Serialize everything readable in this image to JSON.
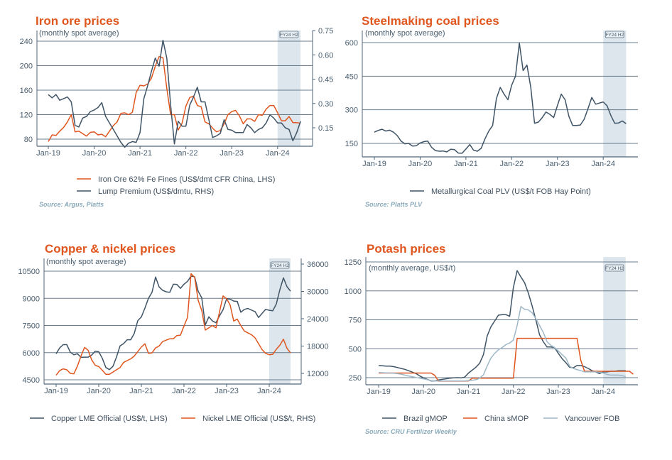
{
  "colors": {
    "title": "#e0561f",
    "dark_series": "#3f5466",
    "orange_series": "#e0561f",
    "light_series": "#9fb8c8",
    "grid": "#50667a",
    "highlight": "#dde6ec",
    "axis_text": "#4a5f70",
    "source_text": "#8aaabb"
  },
  "chart_data": [
    {
      "id": "iron-ore",
      "type": "line",
      "title": "Iron ore prices",
      "subtitle": "(monthly spot average)",
      "x_start": "Jan-19",
      "frequency": "monthly",
      "xticks": [
        "Jan-19",
        "Jan-20",
        "Jan-21",
        "Jan-22",
        "Jan-23",
        "Jan-24"
      ],
      "highlight": {
        "label": "FY24 H2",
        "from": "Jan-24",
        "to": "Jun-24"
      },
      "y_left": {
        "min": 80,
        "max": 240,
        "ticks": [
          "80",
          "120",
          "160",
          "200",
          "240"
        ]
      },
      "y_right": {
        "min": 0.15,
        "max": 0.75,
        "ticks": [
          "0.15",
          "0.30",
          "0.45",
          "0.60",
          "0.75"
        ]
      },
      "grid": true,
      "legend_position": "bottom",
      "series": [
        {
          "name": "Iron Ore 62% Fe Fines (US$/dmt CFR China, LHS)",
          "axis": "left",
          "color_key": "orange_series",
          "values": [
            76,
            87,
            86,
            93,
            99,
            108,
            120,
            92,
            93,
            89,
            85,
            91,
            92,
            87,
            88,
            84,
            93,
            102,
            108,
            122,
            123,
            120,
            124,
            156,
            168,
            167,
            170,
            180,
            199,
            215,
            213,
            163,
            120,
            120,
            95,
            106,
            134,
            148,
            150,
            135,
            133,
            108,
            105,
            98,
            92,
            94,
            105,
            120,
            125,
            127,
            118,
            105,
            113,
            113,
            109,
            120,
            119,
            129,
            135,
            135,
            123,
            110,
            110,
            117,
            107,
            107,
            106
          ]
        },
        {
          "name": "Lump Premium (US$/dmtu, RHS)",
          "axis": "right",
          "color_key": "dark_series",
          "values": [
            0.355,
            0.335,
            0.355,
            0.32,
            0.33,
            0.34,
            0.31,
            0.165,
            0.155,
            0.21,
            0.22,
            0.25,
            0.26,
            0.275,
            0.305,
            0.22,
            0.18,
            0.14,
            0.1,
            0.06,
            0.03,
            0.055,
            0.065,
            0.06,
            0.12,
            0.33,
            0.41,
            0.5,
            0.58,
            0.53,
            0.69,
            0.58,
            0.29,
            0.05,
            0.19,
            0.16,
            0.16,
            0.29,
            0.34,
            0.4,
            0.31,
            0.31,
            0.2,
            0.09,
            0.1,
            0.115,
            0.2,
            0.14,
            0.135,
            0.12,
            0.12,
            0.12,
            0.17,
            0.15,
            0.12,
            0.14,
            0.15,
            0.18,
            0.23,
            0.21,
            0.18,
            0.18,
            0.15,
            0.14,
            0.07,
            0.12,
            0.19
          ]
        }
      ],
      "source": "Source: Argus, Platts"
    },
    {
      "id": "steelmaking-coal",
      "type": "line",
      "title": "Steelmaking coal prices",
      "subtitle": "(monthly spot average)",
      "x_start": "Jan-19",
      "frequency": "monthly",
      "xticks": [
        "Jan-19",
        "Jan-20",
        "Jan-21",
        "Jan-22",
        "Jan-23",
        "Jan-24"
      ],
      "highlight": {
        "label": "FY24 H2",
        "from": "Jan-24",
        "to": "Jun-24"
      },
      "y_left": {
        "min": 150,
        "max": 600,
        "ticks": [
          "150",
          "300",
          "450",
          "600"
        ]
      },
      "grid": true,
      "legend_position": "bottom",
      "series": [
        {
          "name": "Metallurgical Coal PLV (US$/t FOB Hay Point)",
          "axis": "left",
          "color_key": "dark_series",
          "values": [
            200,
            208,
            213,
            205,
            209,
            200,
            185,
            160,
            148,
            150,
            138,
            140,
            152,
            158,
            160,
            133,
            118,
            115,
            116,
            112,
            124,
            122,
            107,
            106,
            125,
            145,
            120,
            115,
            128,
            170,
            205,
            230,
            350,
            400,
            370,
            345,
            410,
            450,
            598,
            475,
            500,
            400,
            240,
            245,
            265,
            290,
            280,
            265,
            320,
            370,
            345,
            270,
            230,
            230,
            232,
            258,
            305,
            355,
            325,
            330,
            335,
            318,
            275,
            240,
            241,
            250,
            238
          ]
        }
      ],
      "source": "Source: Platts PLV"
    },
    {
      "id": "copper-nickel",
      "type": "line",
      "title": "Copper & nickel prices",
      "subtitle": "(monthly spot average)",
      "x_start": "Jan-19",
      "frequency": "monthly",
      "xticks": [
        "Jan-19",
        "Jan-20",
        "Jan-21",
        "Jan-22",
        "Jan-23",
        "Jan-24"
      ],
      "highlight": {
        "label": "FY24 H2",
        "from": "Jan-24",
        "to": "Jun-24"
      },
      "y_left": {
        "min": 4500,
        "max": 10500,
        "ticks": [
          "4500",
          "6000",
          "7500",
          "9000",
          "10500"
        ]
      },
      "y_right": {
        "min": 12000,
        "max": 36000,
        "ticks": [
          "12000",
          "18000",
          "24000",
          "30000",
          "36000"
        ]
      },
      "grid": true,
      "legend_position": "bottom",
      "series": [
        {
          "name": "Copper LME Official (US$/t, LHS)",
          "axis": "left",
          "color_key": "dark_series",
          "values": [
            5940,
            6260,
            6440,
            6440,
            6020,
            5880,
            5940,
            5740,
            5750,
            5750,
            5860,
            6080,
            6050,
            5690,
            5180,
            5060,
            5240,
            5760,
            6370,
            6500,
            6710,
            6710,
            7060,
            7770,
            7970,
            8460,
            9000,
            9330,
            10180,
            9630,
            9440,
            9360,
            9330,
            9780,
            9770,
            9550,
            9780,
            9940,
            10230,
            10190,
            9390,
            9030,
            7530,
            7980,
            7750,
            7650,
            8030,
            8370,
            8980,
            8950,
            8850,
            8830,
            8230,
            8390,
            8440,
            8350,
            8270,
            7940,
            8170,
            8390,
            8340,
            8310,
            8690,
            9480,
            10130,
            9640,
            9400
          ]
        },
        {
          "name": "Nickel LME Official (US$/t, RHS)",
          "axis": "right",
          "color_key": "orange_series",
          "values": [
            11600,
            12600,
            13000,
            12800,
            12000,
            11900,
            13600,
            15800,
            17700,
            17100,
            15000,
            13800,
            13500,
            12700,
            11800,
            11800,
            12300,
            12800,
            13300,
            14400,
            14800,
            15200,
            15800,
            16800,
            17800,
            18500,
            16400,
            16500,
            17600,
            18000,
            19000,
            19300,
            19600,
            19600,
            20300,
            20400,
            22400,
            24300,
            33900,
            33100,
            28000,
            25800,
            21500,
            22000,
            22500,
            22000,
            25500,
            29000,
            28400,
            27000,
            23500,
            23900,
            22500,
            21300,
            20900,
            20500,
            19800,
            18500,
            17200,
            16400,
            16100,
            16200,
            17300,
            18200,
            19500,
            17500,
            16500
          ]
        }
      ],
      "source": ""
    },
    {
      "id": "potash",
      "type": "line",
      "title": "Potash prices",
      "subtitle": "(monthly average, US$/t)",
      "x_start": "Jan-19",
      "frequency": "monthly",
      "xticks": [
        "Jan-19",
        "Jan-20",
        "Jan-21",
        "Jan-22",
        "Jan-23",
        "Jan-24"
      ],
      "highlight": {
        "label": "FY24 H2",
        "from": "Jan-24",
        "to": "Jun-24"
      },
      "y_left": {
        "min": 250,
        "max": 1250,
        "ticks": [
          "250",
          "500",
          "750",
          "1000",
          "1250"
        ]
      },
      "grid": true,
      "legend_position": "bottom",
      "series": [
        {
          "name": "Brazil gMOP",
          "axis": "left",
          "color_key": "dark_series",
          "values": [
            355,
            353,
            350,
            350,
            345,
            338,
            330,
            322,
            310,
            298,
            285,
            265,
            248,
            235,
            222,
            222,
            230,
            235,
            240,
            245,
            248,
            250,
            248,
            255,
            290,
            315,
            340,
            375,
            450,
            610,
            690,
            740,
            790,
            795,
            795,
            780,
            1030,
            1175,
            1120,
            1070,
            980,
            870,
            750,
            620,
            560,
            515,
            515,
            510,
            460,
            415,
            380,
            340,
            335,
            355,
            355,
            345,
            330,
            310,
            300,
            285,
            300,
            300,
            305,
            305,
            310,
            310,
            310
          ]
        },
        {
          "name": "China sMOP",
          "axis": "left",
          "color_key": "orange_series",
          "values": [
            290,
            290,
            290,
            290,
            290,
            290,
            290,
            290,
            290,
            290,
            290,
            290,
            290,
            290,
            290,
            270,
            220,
            220,
            220,
            220,
            220,
            220,
            220,
            220,
            222,
            245,
            245,
            245,
            245,
            245,
            245,
            245,
            245,
            245,
            245,
            245,
            245,
            590,
            590,
            590,
            590,
            590,
            590,
            590,
            590,
            590,
            590,
            590,
            590,
            590,
            590,
            590,
            590,
            590,
            400,
            305,
            305,
            305,
            305,
            305,
            305,
            305,
            305,
            305,
            305,
            305,
            305,
            305,
            280
          ]
        },
        {
          "name": "Vancouver FOB",
          "axis": "left",
          "color_key": "light_series",
          "values": [
            295,
            293,
            292,
            290,
            288,
            285,
            280,
            272,
            265,
            258,
            252,
            245,
            240,
            232,
            225,
            222,
            222,
            222,
            222,
            222,
            222,
            222,
            222,
            222,
            225,
            228,
            232,
            245,
            275,
            350,
            420,
            460,
            490,
            510,
            535,
            550,
            575,
            700,
            865,
            840,
            835,
            810,
            760,
            700,
            640,
            560,
            530,
            510,
            480,
            450,
            420,
            350,
            330,
            320,
            310,
            300,
            300,
            300,
            300,
            298,
            290,
            278,
            272,
            272,
            272,
            268,
            260
          ]
        }
      ],
      "source": "Source: CRU Fertilizer Weekly"
    }
  ]
}
